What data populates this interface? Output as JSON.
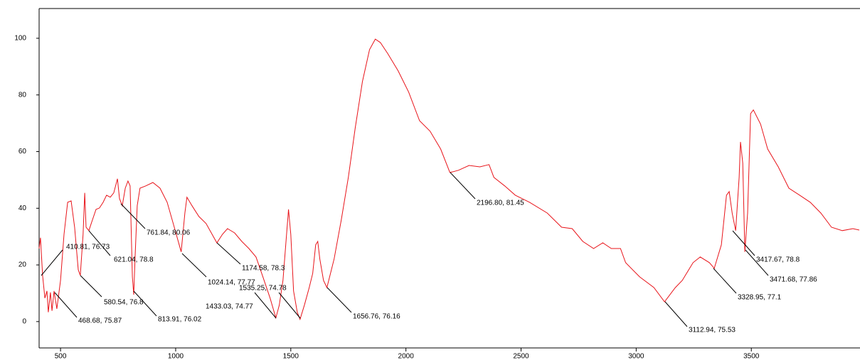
{
  "chart_data": {
    "type": "line",
    "x": [
      407,
      413,
      422,
      432,
      441,
      447,
      456,
      463,
      472,
      484,
      500,
      515,
      531,
      546,
      561,
      577,
      586,
      598,
      605,
      611,
      623,
      638,
      654,
      669,
      685,
      700,
      716,
      731,
      747,
      756,
      768,
      781,
      793,
      802,
      812,
      818,
      824,
      833,
      845,
      870,
      901,
      932,
      963,
      994,
      1024,
      1040,
      1049,
      1071,
      1101,
      1132,
      1163,
      1179,
      1203,
      1225,
      1256,
      1287,
      1318,
      1349,
      1379,
      1410,
      1435,
      1450,
      1466,
      1478,
      1490,
      1500,
      1512,
      1528,
      1540,
      1559,
      1580,
      1595,
      1608,
      1617,
      1626,
      1642,
      1657,
      1688,
      1719,
      1750,
      1780,
      1811,
      1842,
      1867,
      1889,
      1920,
      1966,
      2012,
      2059,
      2105,
      2151,
      2191,
      2228,
      2274,
      2321,
      2361,
      2382,
      2429,
      2475,
      2537,
      2614,
      2676,
      2722,
      2768,
      2815,
      2855,
      2892,
      2932,
      2954,
      3015,
      3077,
      3123,
      3170,
      3200,
      3247,
      3278,
      3318,
      3339,
      3370,
      3392,
      3404,
      3417,
      3432,
      3447,
      3453,
      3463,
      3472,
      3484,
      3497,
      3509,
      3540,
      3571,
      3617,
      3663,
      3710,
      3756,
      3802,
      3848,
      3895,
      3941,
      3969
    ],
    "series": [
      {
        "color": "#e8141a",
        "values": [
          25.8,
          29.6,
          16.3,
          8.3,
          10.8,
          3.3,
          10.3,
          3.8,
          10.8,
          4.5,
          14.5,
          30.8,
          42.1,
          42.6,
          33.3,
          18.3,
          16.3,
          30.8,
          45.4,
          33.3,
          32.1,
          35.8,
          39.6,
          40.1,
          42.1,
          44.6,
          43.9,
          45.4,
          50.4,
          43.4,
          40.9,
          47.1,
          49.6,
          47.9,
          15.8,
          9.5,
          23.3,
          40.9,
          47.1,
          47.9,
          49.1,
          47.1,
          42.1,
          33.3,
          24.6,
          38.3,
          43.9,
          40.9,
          37.1,
          34.6,
          30.1,
          27.8,
          30.8,
          32.8,
          31.3,
          28.3,
          25.8,
          22.8,
          15.8,
          8.3,
          1.3,
          5.8,
          14.5,
          27.1,
          39.6,
          30.8,
          10.8,
          3.3,
          0.8,
          5.8,
          12.0,
          17.0,
          27.1,
          28.3,
          22.1,
          14.5,
          12.0,
          22.1,
          35.8,
          50.9,
          68.4,
          84.7,
          96.0,
          99.7,
          98.5,
          94.7,
          88.5,
          81.0,
          70.9,
          67.2,
          60.9,
          52.6,
          53.4,
          55.1,
          54.6,
          55.4,
          50.9,
          47.9,
          44.6,
          42.1,
          38.3,
          33.3,
          32.8,
          28.3,
          25.8,
          27.8,
          25.8,
          25.8,
          20.8,
          15.8,
          12.0,
          7.0,
          12.0,
          14.5,
          20.8,
          22.8,
          20.8,
          18.8,
          27.1,
          44.6,
          45.9,
          38.3,
          32.1,
          50.9,
          63.4,
          55.9,
          24.6,
          38.3,
          73.4,
          74.7,
          69.7,
          60.9,
          54.6,
          47.1,
          44.6,
          42.1,
          38.3,
          33.3,
          32.1,
          32.8,
          32.3
        ]
      }
    ],
    "xlim": [
      407,
      3972
    ],
    "ylim": [
      -9.3,
      110.5
    ],
    "xticks": [
      500,
      1000,
      1500,
      2000,
      2500,
      3000,
      3500
    ],
    "yticks": [
      0,
      20,
      40,
      60,
      80,
      100
    ],
    "annotations": [
      "410.81, 76.73",
      "468.68, 75.87",
      "580.54, 76.8",
      "621.04, 78.8",
      "761.84, 80.06",
      "813.91, 76.02",
      "1024.14, 77.77",
      "1174.58, 78.3",
      "1535.25, 74.78",
      "1433.03, 74.77",
      "1656.76, 76.16",
      "2196.80, 81.45",
      "3112.94, 75.53",
      "3328.95, 77.1",
      "3417.67, 78.8",
      "3471.68, 77.86"
    ]
  }
}
